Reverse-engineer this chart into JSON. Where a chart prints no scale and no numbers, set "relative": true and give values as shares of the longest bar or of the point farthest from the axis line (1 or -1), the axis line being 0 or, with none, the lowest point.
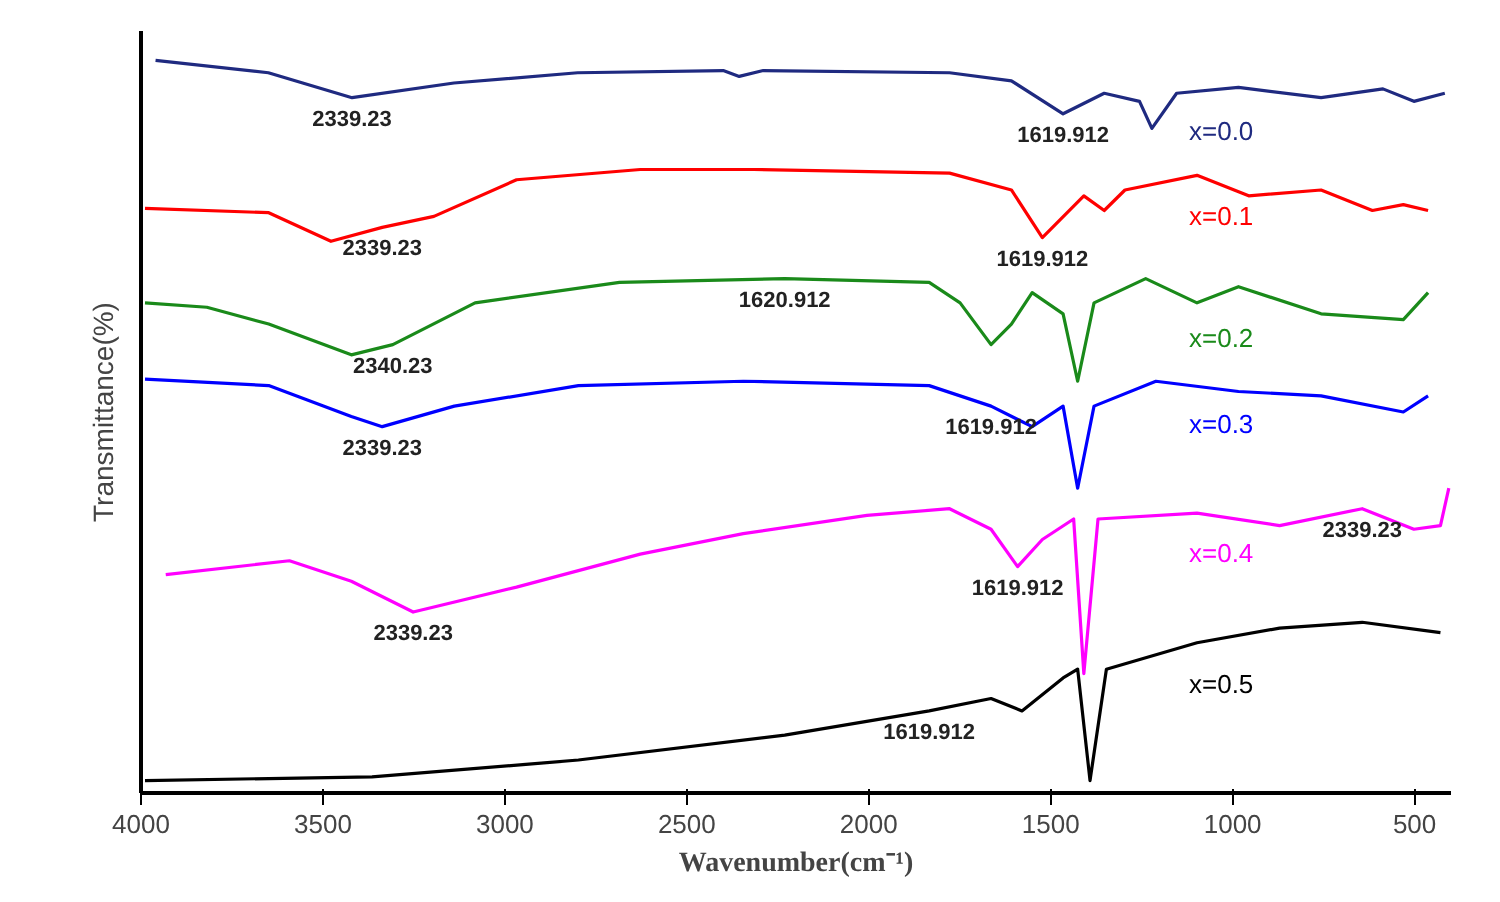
{
  "chart_data": {
    "type": "line",
    "relative": true,
    "xlabel": "Wavenumber(cm⁻¹)",
    "ylabel": "Transmittance(%)",
    "xlim": [
      4000,
      400
    ],
    "xticks": [
      4000,
      3500,
      3000,
      2500,
      2000,
      1500,
      1000,
      500
    ],
    "grid": false,
    "legend": false,
    "tick_labels": "x",
    "marker": "none",
    "line_style": "solid",
    "series": [
      {
        "name": "x=0.0",
        "color": "#1f2a80",
        "x": [
          3960,
          3650,
          3420,
          3140,
          2800,
          2400,
          2356,
          2290,
          1778,
          1608,
          1466,
          1353,
          1256,
          1222,
          1154,
          984,
          757,
          587,
          502,
          417
        ],
        "values": [
          1.0,
          0.983,
          0.949,
          0.969,
          0.983,
          0.986,
          0.978,
          0.986,
          0.983,
          0.972,
          0.927,
          0.955,
          0.944,
          0.907,
          0.955,
          0.963,
          0.949,
          0.961,
          0.944,
          0.955
        ]
      },
      {
        "name": "x=0.1",
        "color": "#ff0000",
        "x": [
          3989,
          3649,
          3478,
          3337,
          3195,
          2968,
          2628,
          2316,
          1778,
          1608,
          1523,
          1409,
          1353,
          1296,
          1098,
          956,
          757,
          616,
          531,
          463
        ],
        "values": [
          0.798,
          0.792,
          0.753,
          0.772,
          0.787,
          0.837,
          0.851,
          0.851,
          0.846,
          0.823,
          0.758,
          0.815,
          0.795,
          0.823,
          0.843,
          0.815,
          0.823,
          0.795,
          0.803,
          0.795
        ]
      },
      {
        "name": "x=0.2",
        "color": "#1a8a1a",
        "x": [
          3989,
          3819,
          3649,
          3422,
          3308,
          3082,
          2685,
          2231,
          1834,
          1749,
          1664,
          1608,
          1551,
          1466,
          1426,
          1381,
          1239,
          1098,
          984,
          757,
          531,
          463
        ],
        "values": [
          0.669,
          0.663,
          0.64,
          0.598,
          0.612,
          0.669,
          0.697,
          0.702,
          0.697,
          0.669,
          0.612,
          0.64,
          0.683,
          0.654,
          0.562,
          0.669,
          0.702,
          0.669,
          0.691,
          0.654,
          0.646,
          0.683
        ]
      },
      {
        "name": "x=0.3",
        "color": "#0000ff",
        "x": [
          3989,
          3649,
          3422,
          3337,
          3139,
          2798,
          2345,
          1834,
          1664,
          1551,
          1466,
          1426,
          1381,
          1211,
          984,
          757,
          531,
          463
        ],
        "values": [
          0.565,
          0.556,
          0.514,
          0.5,
          0.528,
          0.556,
          0.562,
          0.556,
          0.528,
          0.5,
          0.528,
          0.416,
          0.528,
          0.562,
          0.548,
          0.542,
          0.52,
          0.542
        ]
      },
      {
        "name": "x=0.4",
        "color": "#ff00ff",
        "x": [
          3932,
          3592,
          3422,
          3252,
          2968,
          2628,
          2345,
          2005,
          1778,
          1664,
          1591,
          1523,
          1437,
          1409,
          1370,
          1098,
          871,
          644,
          502,
          429,
          406
        ],
        "values": [
          0.298,
          0.317,
          0.289,
          0.247,
          0.281,
          0.326,
          0.354,
          0.379,
          0.388,
          0.36,
          0.309,
          0.346,
          0.374,
          0.163,
          0.374,
          0.382,
          0.365,
          0.388,
          0.36,
          0.365,
          0.416
        ]
      },
      {
        "name": "x=0.5",
        "color": "#000000",
        "x": [
          3989,
          3365,
          2798,
          2231,
          1834,
          1664,
          1579,
          1466,
          1426,
          1392,
          1347,
          1098,
          871,
          644,
          429
        ],
        "values": [
          0.017,
          0.022,
          0.045,
          0.079,
          0.112,
          0.129,
          0.112,
          0.157,
          0.169,
          0.017,
          0.169,
          0.205,
          0.225,
          0.233,
          0.219
        ]
      }
    ],
    "annotations": [
      {
        "text": "2339.23",
        "x": 3420,
        "y": 0.949
      },
      {
        "text": "1619.912",
        "x": 1466,
        "y": 0.927
      },
      {
        "text": "2339.23",
        "x": 3337,
        "y": 0.772
      },
      {
        "text": "1619.912",
        "x": 1523,
        "y": 0.758
      },
      {
        "text": "2340.23",
        "x": 3308,
        "y": 0.612
      },
      {
        "text": "1620.912",
        "x": 2231,
        "y": 0.702
      },
      {
        "text": "2339.23",
        "x": 3337,
        "y": 0.5
      },
      {
        "text": "1619.912",
        "x": 1664,
        "y": 0.528
      },
      {
        "text": "2339.23",
        "x": 3252,
        "y": 0.247
      },
      {
        "text": "1619.912",
        "x": 1591,
        "y": 0.309
      },
      {
        "text": "2339.23",
        "x": 644,
        "y": 0.388
      },
      {
        "text": "1619.912",
        "x": 1834,
        "y": 0.112
      }
    ]
  }
}
